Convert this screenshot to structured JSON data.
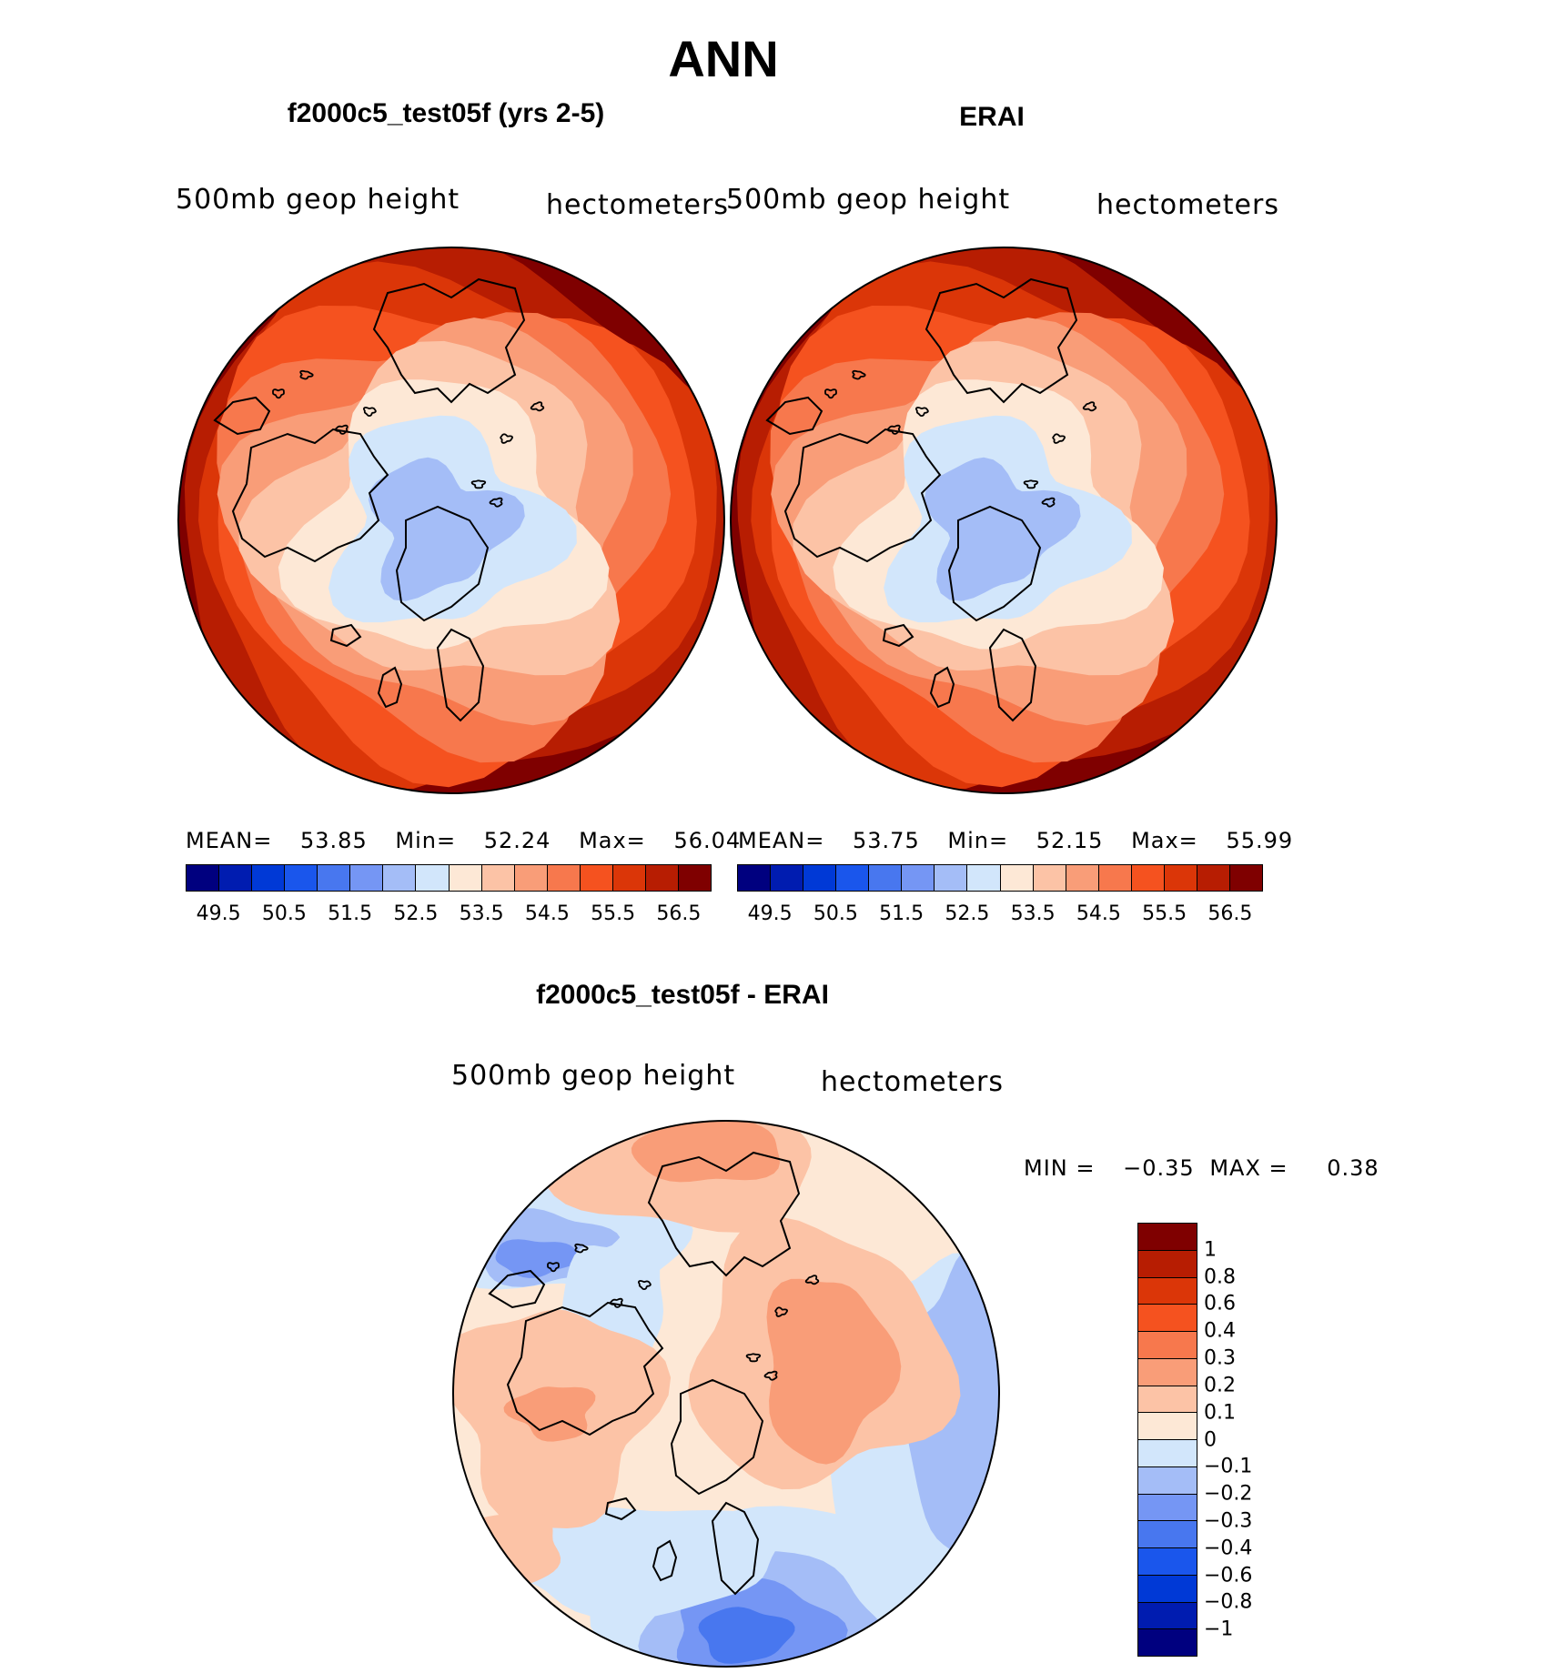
{
  "page": {
    "title": "ANN",
    "panel_left_title": "f2000c5_test05f (yrs 2-5)",
    "panel_right_title": "ERAI",
    "panel_diff_title": "f2000c5_test05f - ERAI"
  },
  "colors": {
    "palette16": [
      "#00007f",
      "#001cb0",
      "#0039d6",
      "#1a56ec",
      "#4877ef",
      "#7596f4",
      "#a4bdf7",
      "#d2e6fb",
      "#fde8d6",
      "#fcc3a6",
      "#f99d78",
      "#f7784d",
      "#f5521f",
      "#db3608",
      "#b71d02",
      "#7f0000"
    ],
    "diff_palette": [
      "#00007f",
      "#001cb0",
      "#0039d6",
      "#1a56ec",
      "#4877ef",
      "#7596f4",
      "#a4bdf7",
      "#d2e6fb",
      "#fde8d6",
      "#fcc3a6",
      "#f99d78",
      "#f7784d",
      "#f5521f",
      "#db3608",
      "#b71d02",
      "#7f0000"
    ],
    "coast": "#000000"
  },
  "chart_data": [
    {
      "type": "heatmap",
      "projection": "north-polar-stereographic",
      "title": "f2000c5_test05f (yrs 2-5)",
      "left_label": "500mb geop height",
      "right_label": "hectometers",
      "stats": {
        "mean_label": "MEAN=",
        "mean": "53.85",
        "min_label": "Min=",
        "min": "52.24",
        "max_label": "Max=",
        "max": "56.04"
      },
      "contour_levels": [
        "49.5",
        "50",
        "50.5",
        "51",
        "51.5",
        "52",
        "52.5",
        "53",
        "53.5",
        "54",
        "54.5",
        "55",
        "55.5",
        "56",
        "56.5"
      ],
      "colorbar_labels": [
        "49.5",
        "50.5",
        "51.5",
        "52.5",
        "53.5",
        "54.5",
        "55.5",
        "56.5"
      ],
      "ring_levels": [
        56.5,
        56.0,
        55.5,
        55.0,
        54.5,
        54.0,
        53.5,
        53.0,
        52.5
      ]
    },
    {
      "type": "heatmap",
      "projection": "north-polar-stereographic",
      "title": "ERAI",
      "left_label": "500mb geop height",
      "right_label": "hectometers",
      "stats": {
        "mean_label": "MEAN=",
        "mean": "53.75",
        "min_label": "Min=",
        "min": "52.15",
        "max_label": "Max=",
        "max": "55.99"
      },
      "contour_levels": [
        "49.5",
        "50",
        "50.5",
        "51",
        "51.5",
        "52",
        "52.5",
        "53",
        "53.5",
        "54",
        "54.5",
        "55",
        "55.5",
        "56",
        "56.5"
      ],
      "colorbar_labels": [
        "49.5",
        "50.5",
        "51.5",
        "52.5",
        "53.5",
        "54.5",
        "55.5",
        "56.5"
      ],
      "ring_levels": [
        56.5,
        56.0,
        55.5,
        55.0,
        54.5,
        54.0,
        53.5,
        53.0,
        52.5
      ]
    },
    {
      "type": "heatmap",
      "projection": "north-polar-stereographic",
      "title": "f2000c5_test05f - ERAI",
      "left_label": "500mb geop height",
      "right_label": "hectometers",
      "stats": {
        "min_label": "MIN =",
        "min": "−0.35",
        "max_label": "MAX =",
        "max": "0.38"
      },
      "contour_levels": [
        "1",
        "0.8",
        "0.6",
        "0.4",
        "0.3",
        "0.2",
        "0.1",
        "0",
        "−0.1",
        "−0.2",
        "−0.3",
        "−0.4",
        "−0.6",
        "−0.8",
        "−1"
      ]
    }
  ]
}
